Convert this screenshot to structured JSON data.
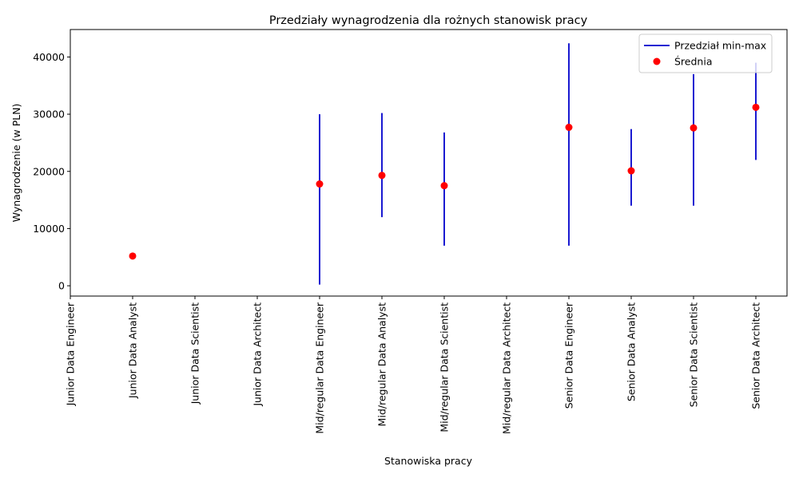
{
  "chart_data": {
    "type": "scatter",
    "title": "Przedziały wynagrodzenia dla rożnych stanowisk pracy",
    "xlabel": "Stanowiska pracy",
    "ylabel": "Wynagrodzenie (w PLN)",
    "ylim": [
      -1800,
      44800
    ],
    "yticks": [
      0,
      10000,
      20000,
      30000,
      40000
    ],
    "categories": [
      "Junior Data Engineer",
      "Junior Data Analyst",
      "Junior Data Scientist",
      "Junior Data Architect",
      "Mid/regular Data Engineer",
      "Mid/regular Data Analyst",
      "Mid/regular Data Scientist",
      "Mid/regular Data Architect",
      "Senior Data Engineer",
      "Senior Data Analyst",
      "Senior Data Scientist",
      "Senior Data Architect"
    ],
    "series": [
      {
        "name": "Przedział min-max",
        "kind": "range",
        "color": "#0000cc",
        "min": [
          null,
          null,
          null,
          null,
          200,
          12000,
          7000,
          null,
          7000,
          14000,
          14000,
          22000
        ],
        "max": [
          null,
          null,
          null,
          null,
          30000,
          30200,
          26800,
          null,
          42400,
          27400,
          37000,
          39000
        ]
      },
      {
        "name": "Średnia",
        "kind": "point",
        "color": "#ff0000",
        "values": [
          null,
          5200,
          null,
          null,
          17800,
          19300,
          17500,
          null,
          27700,
          20100,
          27600,
          31200
        ]
      }
    ],
    "legend_position": "upper right",
    "grid": false
  }
}
